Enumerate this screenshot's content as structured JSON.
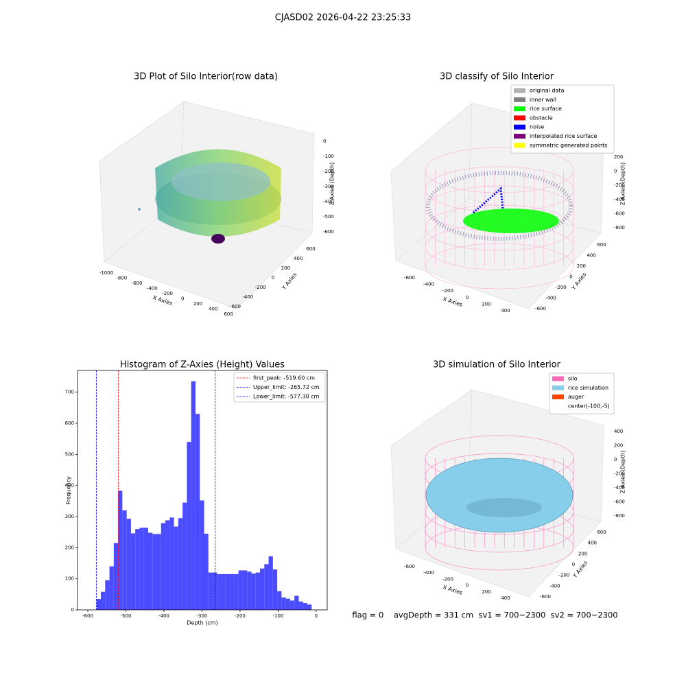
{
  "figure": {
    "title": "CJASD02 2026-04-22 23:25:33",
    "footer": "flag = 0    avgDepth = 331 cm  sv1 = 700~2300  sv2 = 700~2300"
  },
  "chart_data": [
    {
      "type": "scatter3d",
      "title": "3D Plot of Silo Interior(row data)",
      "xlabel": "X Axies",
      "ylabel": "Y Axies",
      "zlabel": "Z Axies (Depth)",
      "xticks": [
        -1000,
        -800,
        -600,
        -400,
        -200,
        0,
        200,
        400,
        600
      ],
      "yticks": [
        -600,
        -400,
        -200,
        0,
        200,
        400,
        600
      ],
      "zticks": [
        0,
        -100,
        -200,
        -300,
        -400,
        -500,
        -600
      ]
    },
    {
      "type": "scatter3d",
      "title": "3D classify of Silo Interior",
      "xlabel": "X Axies",
      "ylabel": "Y Axies",
      "zlabel": "Z Axies (Depth)",
      "xticks": [
        -600,
        -400,
        -200,
        0,
        200,
        400
      ],
      "yticks": [
        -600,
        -400,
        -200,
        0,
        200,
        400,
        600
      ],
      "zticks": [
        200,
        0,
        -200,
        -400,
        -600,
        -800
      ],
      "legend": [
        {
          "name": "original data",
          "color": "#b0b0b0"
        },
        {
          "name": "inner wall",
          "color": "#808080"
        },
        {
          "name": "rice surface",
          "color": "#00ff00"
        },
        {
          "name": "obstacle",
          "color": "#ff0000"
        },
        {
          "name": "noise",
          "color": "#0000ff"
        },
        {
          "name": "interpolated rice surface",
          "color": "#800080"
        },
        {
          "name": "symmetric generated points",
          "color": "#ffff00"
        }
      ]
    },
    {
      "type": "histogram",
      "title": "Histogram of Z-Axies (Height) Values",
      "xlabel": "Depth (cm)",
      "ylabel": "Frequency",
      "color": "#4b4bff",
      "bins": [
        -577.0,
        -565.7,
        -554.4,
        -543.1,
        -531.8,
        -520.5,
        -509.2,
        -497.9,
        -486.6,
        -475.3,
        -464.0,
        -452.7,
        -441.4,
        -430.1,
        -418.8,
        -407.5,
        -396.2,
        -384.9,
        -373.6,
        -362.3,
        -351.0,
        -339.7,
        -328.4,
        -317.1,
        -305.8,
        -294.5,
        -283.2,
        -271.9,
        -260.6,
        -249.3,
        -238.0,
        -226.7,
        -215.4,
        -204.1,
        -192.8,
        -181.5,
        -170.2,
        -158.9,
        -147.6,
        -136.3,
        -125.0,
        -113.7,
        -102.4,
        -91.1,
        -79.8,
        -68.5,
        -57.2,
        -45.9,
        -34.6,
        -23.3,
        -12.0
      ],
      "values": [
        35,
        58,
        95,
        140,
        215,
        383,
        320,
        293,
        246,
        260,
        264,
        264,
        248,
        244,
        244,
        279,
        288,
        297,
        268,
        295,
        345,
        540,
        735,
        630,
        352,
        245,
        120,
        120,
        115,
        115,
        115,
        115,
        115,
        127,
        127,
        123,
        117,
        120,
        133,
        147,
        172,
        130,
        60,
        40,
        36,
        30,
        45,
        27,
        22,
        17
      ],
      "xlim": [
        -627,
        29
      ],
      "ylim": [
        0,
        770
      ],
      "xticks": [
        -600,
        -500,
        -400,
        -300,
        -200,
        -100,
        0
      ],
      "yticks": [
        0,
        100,
        200,
        300,
        400,
        500,
        600,
        700
      ],
      "lines": [
        {
          "name": "first_peak: -519.60 cm",
          "value": -519.6,
          "color": "#ff0000"
        },
        {
          "name": "Upper_limit: -265.72 cm",
          "value": -265.72,
          "color": "#0000ff"
        },
        {
          "name": "Lower_limit: -577.30 cm",
          "value": -577.3,
          "color": "#0000ff"
        }
      ]
    },
    {
      "type": "surface3d",
      "title": "3D simulation of Silo Interior",
      "xlabel": "X Axies",
      "ylabel": "Y Axies",
      "zlabel": "Z Axies (Depth)",
      "xticks": [
        -600,
        -400,
        -200,
        0,
        200,
        400
      ],
      "yticks": [
        -600,
        -400,
        -200,
        0,
        200,
        400,
        600
      ],
      "zticks": [
        400,
        200,
        0,
        -200,
        -400,
        -600,
        -800
      ],
      "legend": [
        {
          "name": "silo",
          "color": "#ff69b4"
        },
        {
          "name": "rice simulation",
          "color": "#87ceeb"
        },
        {
          "name": "auger",
          "color": "#ff4500"
        },
        {
          "name": "center(-100,-5)",
          "color": "#ffffff"
        }
      ]
    }
  ]
}
